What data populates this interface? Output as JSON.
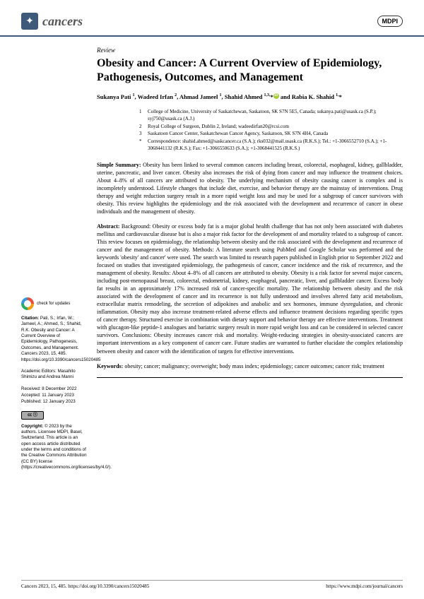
{
  "journal": {
    "name": "cancers",
    "publisher": "MDPI"
  },
  "article_type": "Review",
  "title": "Obesity and Cancer: A Current Overview of Epidemiology, Pathogenesis, Outcomes, and Management",
  "authors_html": "Sukanya Pati ¹, Wadeed Irfan ², Ahmad Jameel ¹, Shahid Ahmed ¹,³,* and Rabia K. Shahid ¹,*",
  "affiliations": [
    {
      "n": "1",
      "text": "College of Medicine, University of Saskatchewan, Saskatoon, SK S7N 5E5, Canada; sukanya.pati@usask.ca (S.P.); syj750@usask.ca (A.J.)"
    },
    {
      "n": "2",
      "text": "Royal College of Surgeon, Dublin 2, Ireland; wadeedirfan20@rcsi.com"
    },
    {
      "n": "3",
      "text": "Saskatoon Cancer Center, Saskatchewan Cancer Agency, Saskatoon, SK S7N 4H4, Canada"
    },
    {
      "n": "*",
      "text": "Correspondence: shahid.ahmed@saskcancer.ca (S.A.); rks032@mail.usask.ca (R.K.S.); Tel.: +1-3066552710 (S.A.); +1-3068441132 (R.K.S.); Fax: +1-3066550633 (S.A.); +1-3068441525 (R.K.S.)"
    }
  ],
  "summary_label": "Simple Summary:",
  "summary": "Obesity has been linked to several common cancers including breast, colorectal, esophageal, kidney, gallbladder, uterine, pancreatic, and liver cancer. Obesity also increases the risk of dying from cancer and may influence the treatment choices. About 4–8% of all cancers are attributed to obesity. The underlying mechanism of obesity causing cancer is complex and is incompletely understood. Lifestyle changes that include diet, exercise, and behavior therapy are the mainstay of interventions. Drug therapy and weight reduction surgery result in a more rapid weight loss and may be used for a subgroup of cancer survivors with obesity. This review highlights the epidemiology and the risk associated with the development and recurrence of cancer in obese individuals and the management of obesity.",
  "abstract_label": "Abstract:",
  "abstract": "Background: Obesity or excess body fat is a major global health challenge that has not only been associated with diabetes mellitus and cardiovascular disease but is also a major risk factor for the development of and mortality related to a subgroup of cancer. This review focuses on epidemiology, the relationship between obesity and the risk associated with the development and recurrence of cancer and the management of obesity. Methods: A literature search using PubMed and Google Scholar was performed and the keywords 'obesity' and cancer' were used. The search was limited to research papers published in English prior to September 2022 and focused on studies that investigated epidemiology, the pathogenesis of cancer, cancer incidence and the risk of recurrence, and the management of obesity. Results: About 4–8% of all cancers are attributed to obesity. Obesity is a risk factor for several major cancers, including post-menopausal breast, colorectal, endometrial, kidney, esophageal, pancreatic, liver, and gallbladder cancer. Excess body fat results in an approximately 17% increased risk of cancer-specific mortality. The relationship between obesity and the risk associated with the development of cancer and its recurrence is not fully understood and involves altered fatty acid metabolism, extracellular matrix remodeling, the secretion of adipokines and anabolic and sex hormones, immune dysregulation, and chronic inflammation. Obesity may also increase treatment-related adverse effects and influence treatment decisions regarding specific types of cancer therapy. Structured exercise in combination with dietary support and behavior therapy are effective interventions. Treatment with glucagon-like peptide-1 analogues and bariatric surgery result in more rapid weight loss and can be considered in selected cancer survivors. Conclusions: Obesity increases cancer risk and mortality. Weight-reducing strategies in obesity-associated cancers are important interventions as a key component of cancer care. Future studies are warranted to further elucidate the complex relationship between obesity and cancer with the identification of targets for effective interventions.",
  "keywords_label": "Keywords:",
  "keywords": "obesity; cancer; malignancy; overweight; body mass index; epidemiology; cancer outcomes; cancer risk; treatment",
  "sidebar": {
    "check": "check for updates",
    "citation_label": "Citation:",
    "citation": "Pati, S.; Irfan, W.; Jameel, A.; Ahmed, S.; Shahid, R.K. Obesity and Cancer: A Current Overview of Epidemiology, Pathogenesis, Outcomes, and Management. Cancers 2023, 15, 485. https://doi.org/10.3390/cancers15020485",
    "editors_label": "Academic Editors:",
    "editors": "Masahito Shimizu and Andrea Manni",
    "received": "Received: 8 December 2022",
    "accepted": "Accepted: 11 January 2023",
    "published": "Published: 12 January 2023",
    "cc": "CC BY",
    "copyright_label": "Copyright:",
    "copyright": "© 2023 by the authors. Licensee MDPI, Basel, Switzerland. This article is an open access article distributed under the terms and conditions of the Creative Commons Attribution (CC BY) license (https://creativecommons.org/licenses/by/4.0/)."
  },
  "footer": {
    "left": "Cancers 2023, 15, 485. https://doi.org/10.3390/cancers15020485",
    "right": "https://www.mdpi.com/journal/cancers"
  }
}
